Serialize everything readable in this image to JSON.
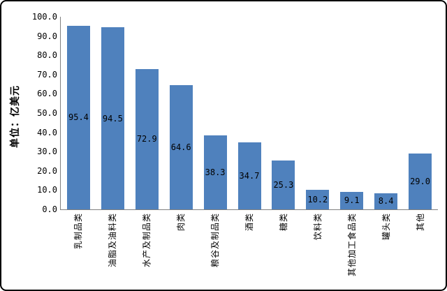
{
  "frame": {
    "background": "#ffffff",
    "border_color": "#000000"
  },
  "chart_data": {
    "type": "bar",
    "title": "",
    "unit_label": "单位：亿美元",
    "categories": [
      "乳制品类",
      "油脂及油料类",
      "水产及制品类",
      "肉类",
      "粮谷及制品类",
      "酒类",
      "糖类",
      "饮料类",
      "其他加工食品类",
      "罐头类",
      "其他"
    ],
    "values": [
      95.4,
      94.5,
      72.9,
      64.6,
      38.3,
      34.7,
      25.3,
      10.2,
      9.1,
      8.4,
      29.0
    ],
    "data_labels": [
      "95.4",
      "94.5",
      "72.9",
      "64.6",
      "38.3",
      "34.7",
      "25.3",
      "10.2",
      "9.1",
      "8.4",
      "29.0"
    ],
    "ylabel": "单位：亿美元",
    "xlabel": "",
    "ylim": [
      0,
      100
    ],
    "y_ticks": [
      "0.0",
      "10.0",
      "20.0",
      "30.0",
      "40.0",
      "50.0",
      "60.0",
      "70.0",
      "80.0",
      "90.0",
      "100.0"
    ],
    "grid": false,
    "legend": "none",
    "bar_color": "#4F81BD",
    "axis_color": "#808080",
    "text_color": "#000000"
  }
}
